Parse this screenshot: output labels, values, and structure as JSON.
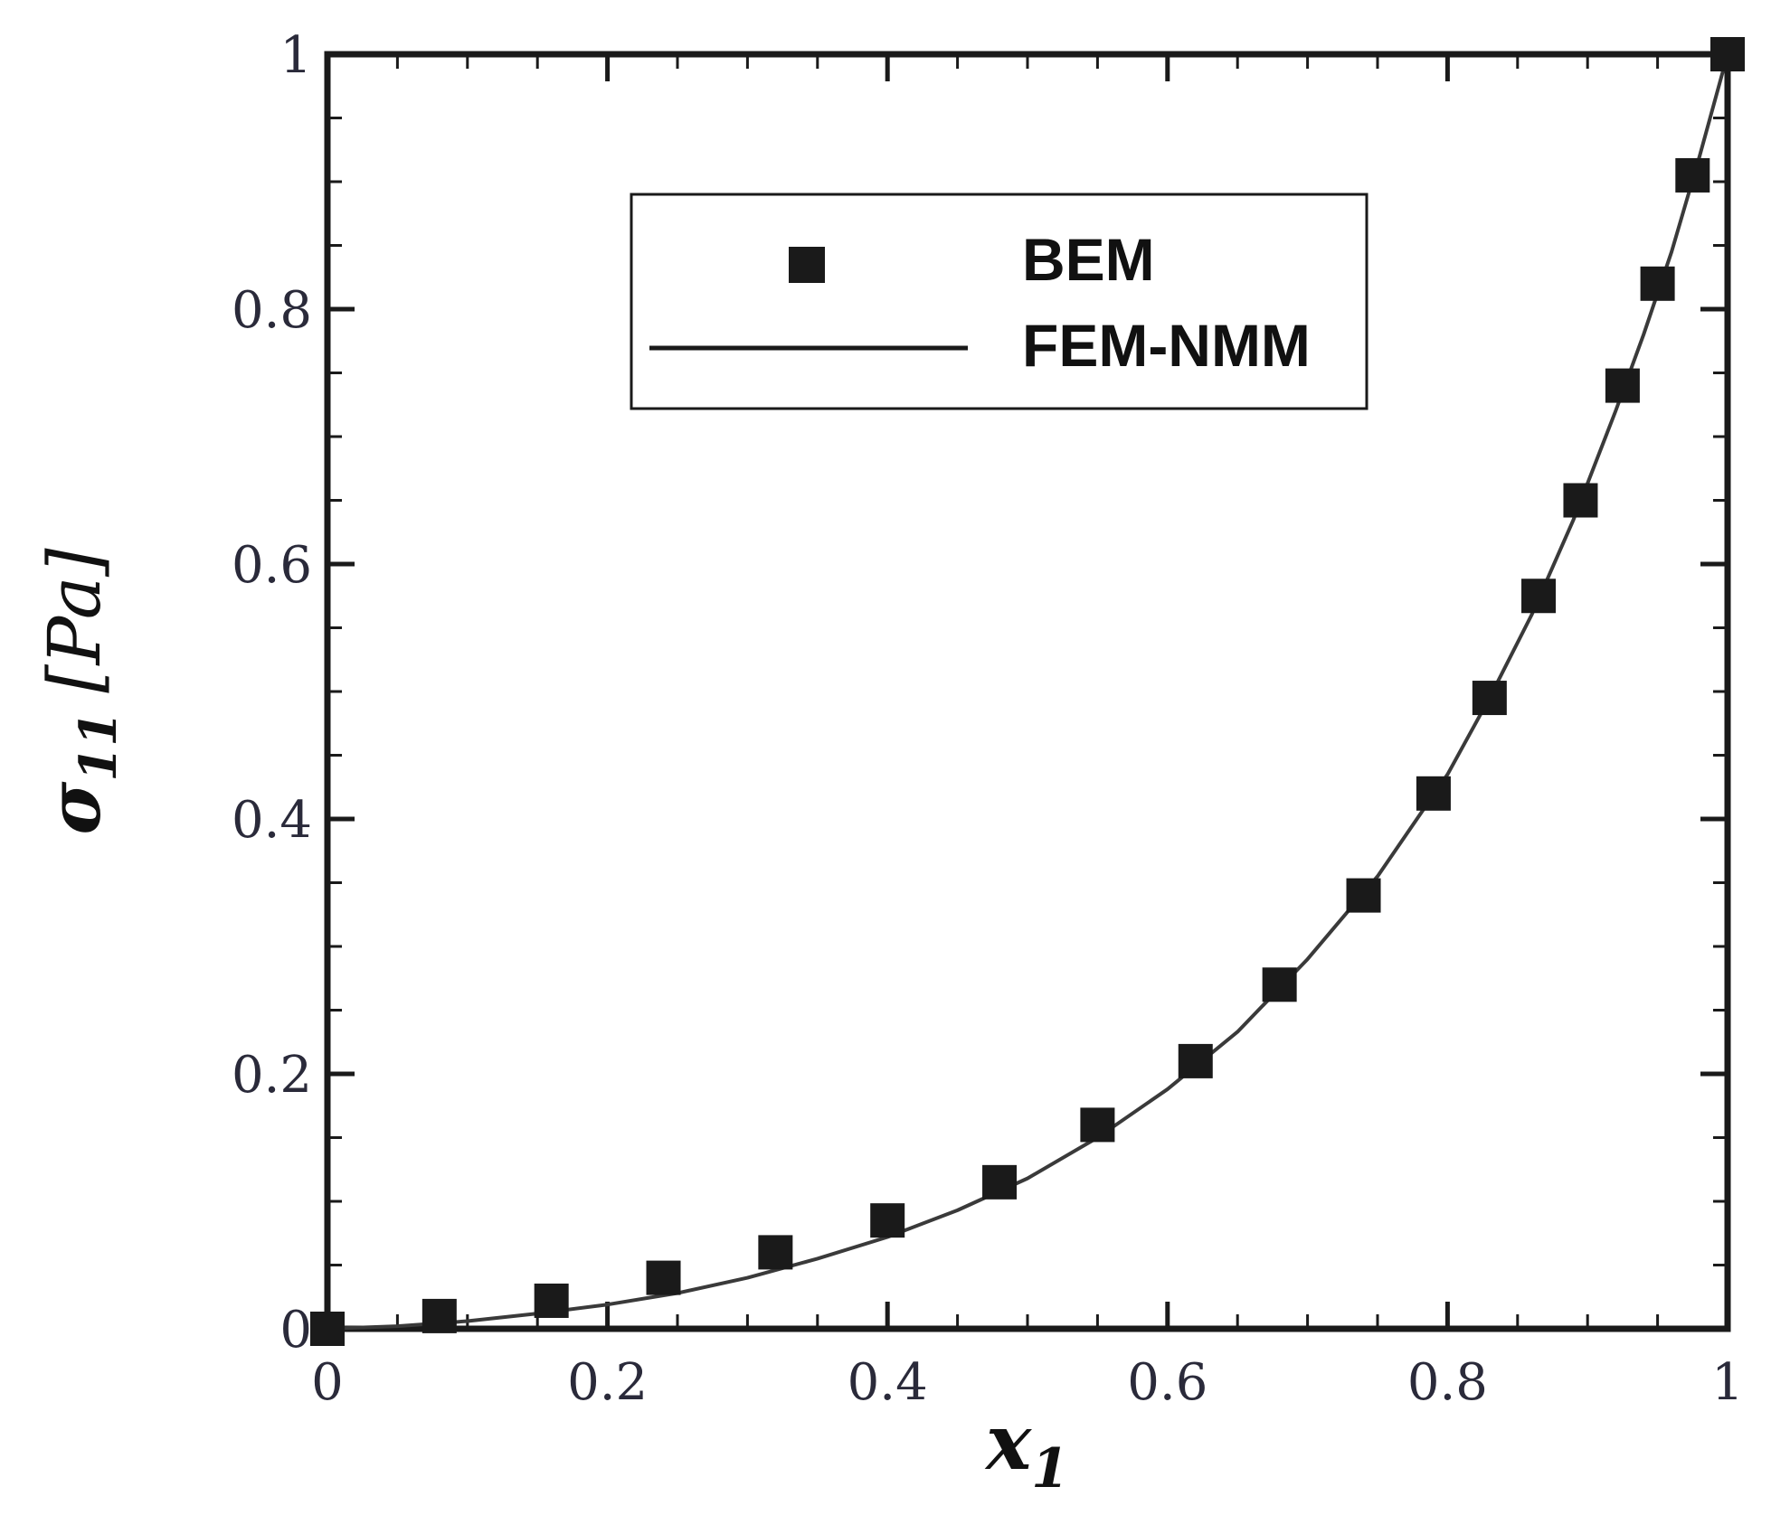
{
  "chart_data": {
    "type": "scatter",
    "xlabel": {
      "main": "x",
      "sub": "1"
    },
    "ylabel": {
      "main": "σ",
      "sub": "11",
      "unit": "[Pa]"
    },
    "xlim": [
      0,
      1
    ],
    "ylim": [
      0,
      1
    ],
    "x_ticks": [
      "0",
      "0.2",
      "0.4",
      "0.6",
      "0.8",
      "1"
    ],
    "y_ticks": [
      "0",
      "0.2",
      "0.4",
      "0.6",
      "0.8",
      "1"
    ],
    "grid": false,
    "legend_position": "top-center",
    "series": [
      {
        "name": "BEM",
        "style": "square-markers",
        "color": "#1a1a1a",
        "x": [
          0,
          0.08,
          0.16,
          0.24,
          0.32,
          0.4,
          0.48,
          0.55,
          0.62,
          0.68,
          0.74,
          0.79,
          0.83,
          0.865,
          0.895,
          0.925,
          0.95,
          0.975,
          1.0
        ],
        "y": [
          0,
          0.01,
          0.022,
          0.04,
          0.06,
          0.085,
          0.115,
          0.16,
          0.21,
          0.27,
          0.34,
          0.42,
          0.495,
          0.575,
          0.65,
          0.74,
          0.82,
          0.905,
          1.0
        ]
      },
      {
        "name": "FEM-NMM",
        "style": "solid-line",
        "color": "#3a3a3a",
        "x": [
          0,
          0.05,
          0.1,
          0.15,
          0.2,
          0.25,
          0.3,
          0.35,
          0.4,
          0.45,
          0.5,
          0.55,
          0.6,
          0.65,
          0.7,
          0.75,
          0.8,
          0.83,
          0.86,
          0.89,
          0.92,
          0.94,
          0.96,
          0.98,
          1.0
        ],
        "y": [
          0,
          0.002,
          0.006,
          0.012,
          0.019,
          0.028,
          0.04,
          0.055,
          0.072,
          0.093,
          0.118,
          0.15,
          0.188,
          0.233,
          0.29,
          0.355,
          0.435,
          0.495,
          0.56,
          0.635,
          0.72,
          0.78,
          0.845,
          0.92,
          1.0
        ]
      }
    ]
  }
}
